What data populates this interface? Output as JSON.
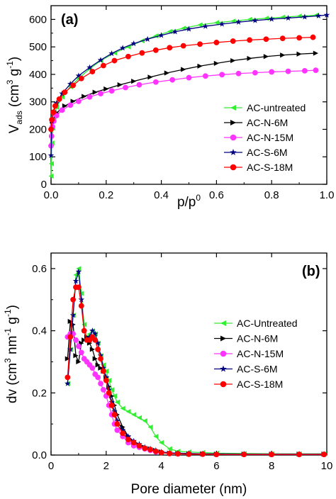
{
  "chart_data": [
    {
      "type": "line",
      "panel_label": "(a)",
      "xlabel": "p/p0",
      "xlabel_main": "p/p",
      "xlabel_sup": "0",
      "ylabel": "Vads (cm3 g-1)",
      "ylabel_parts": {
        "v": "V",
        "sub": "ads",
        "mid": " (cm",
        "sup1": "3",
        "mid2": " g",
        "sup2": "-1",
        "end": ")"
      },
      "xlim": [
        0,
        1.0
      ],
      "ylim": [
        0,
        650
      ],
      "xticks": [
        0.0,
        0.2,
        0.4,
        0.6,
        0.8,
        1.0
      ],
      "xtick_labels": [
        "0.0",
        "0.2",
        "0.4",
        "0.6",
        "0.8",
        "1.0"
      ],
      "yticks": [
        0,
        100,
        200,
        300,
        400,
        500,
        600
      ],
      "ytick_labels": [
        "0",
        "100",
        "200",
        "300",
        "400",
        "500",
        "600"
      ],
      "legend_position": "lower-right",
      "series": [
        {
          "name": "AC-untreated",
          "color": "#33ee33",
          "marker": "triangle-left",
          "x": [
            0.0,
            0.001,
            0.003,
            0.006,
            0.01,
            0.02,
            0.04,
            0.07,
            0.1,
            0.14,
            0.18,
            0.23,
            0.28,
            0.33,
            0.38,
            0.43,
            0.48,
            0.54,
            0.6,
            0.66,
            0.72,
            0.78,
            0.84,
            0.9,
            0.96
          ],
          "y": [
            30,
            75,
            150,
            205,
            240,
            280,
            318,
            355,
            385,
            420,
            450,
            478,
            500,
            522,
            540,
            556,
            568,
            580,
            588,
            594,
            600,
            604,
            608,
            612,
            615
          ]
        },
        {
          "name": "AC-N-6M",
          "color": "#000000",
          "marker": "triangle-right",
          "x": [
            0.005,
            0.02,
            0.05,
            0.08,
            0.12,
            0.16,
            0.2,
            0.25,
            0.3,
            0.36,
            0.42,
            0.48,
            0.54,
            0.6,
            0.66,
            0.72,
            0.78,
            0.84,
            0.9,
            0.96
          ],
          "y": [
            230,
            260,
            285,
            302,
            320,
            335,
            347,
            362,
            375,
            390,
            405,
            418,
            430,
            440,
            450,
            458,
            465,
            470,
            474,
            477
          ]
        },
        {
          "name": "AC-N-15M",
          "color": "#ff33ff",
          "marker": "circle",
          "x": [
            0.0,
            0.002,
            0.005,
            0.01,
            0.02,
            0.04,
            0.07,
            0.1,
            0.14,
            0.18,
            0.22,
            0.27,
            0.32,
            0.38,
            0.44,
            0.5,
            0.56,
            0.62,
            0.68,
            0.74,
            0.8,
            0.86,
            0.92,
            0.96
          ],
          "y": [
            140,
            175,
            210,
            230,
            250,
            270,
            288,
            302,
            318,
            330,
            340,
            352,
            362,
            372,
            380,
            388,
            394,
            399,
            403,
            406,
            409,
            411,
            413,
            415
          ]
        },
        {
          "name": "AC-S-6M",
          "color": "#000080",
          "marker": "star",
          "x": [
            0.0,
            0.003,
            0.01,
            0.02,
            0.04,
            0.07,
            0.1,
            0.14,
            0.18,
            0.22,
            0.26,
            0.3,
            0.35,
            0.4,
            0.45,
            0.5,
            0.56,
            0.62,
            0.68,
            0.74,
            0.8,
            0.86,
            0.92,
            0.97,
            1.0
          ],
          "y": [
            105,
            230,
            265,
            295,
            330,
            365,
            395,
            425,
            452,
            476,
            496,
            512,
            528,
            542,
            555,
            565,
            575,
            583,
            590,
            596,
            601,
            605,
            609,
            613,
            616
          ]
        },
        {
          "name": "AC-S-18M",
          "color": "#ff0000",
          "marker": "circle",
          "x": [
            0.0,
            0.003,
            0.008,
            0.015,
            0.03,
            0.05,
            0.08,
            0.11,
            0.15,
            0.19,
            0.23,
            0.28,
            0.33,
            0.38,
            0.43,
            0.48,
            0.54,
            0.6,
            0.66,
            0.72,
            0.78,
            0.84,
            0.9,
            0.95
          ],
          "y": [
            200,
            235,
            262,
            285,
            310,
            335,
            360,
            385,
            410,
            432,
            450,
            465,
            478,
            488,
            497,
            504,
            510,
            516,
            521,
            525,
            528,
            531,
            533,
            535
          ]
        }
      ]
    },
    {
      "type": "line",
      "panel_label": "(b)",
      "xlabel": "Pore diameter (nm)",
      "ylabel": "dv (cm3 nm-1 g-1)",
      "ylabel_parts": {
        "v": "dv (cm",
        "sup1": "3",
        "mid": " nm",
        "sup2": "-1",
        "mid2": " g",
        "sup3": "-1",
        "end": ")"
      },
      "xlim": [
        0,
        10
      ],
      "ylim": [
        0,
        0.65
      ],
      "xticks": [
        0,
        2,
        4,
        6,
        8,
        10
      ],
      "xtick_labels": [
        "0",
        "2",
        "4",
        "6",
        "8",
        "10"
      ],
      "yticks": [
        0.0,
        0.2,
        0.4,
        0.6
      ],
      "ytick_labels": [
        "0.0",
        "0.2",
        "0.4",
        "0.6"
      ],
      "legend_position": "right",
      "series": [
        {
          "name": "AC-Untreated",
          "color": "#33ee33",
          "marker": "triangle-left",
          "x": [
            0.6,
            0.7,
            0.8,
            0.9,
            1.0,
            1.1,
            1.2,
            1.3,
            1.4,
            1.5,
            1.6,
            1.7,
            1.8,
            1.9,
            2.0,
            2.1,
            2.2,
            2.3,
            2.4,
            2.6,
            2.8,
            3.0,
            3.2,
            3.4,
            3.6,
            3.8,
            4.0,
            4.3,
            4.6,
            5.0,
            5.5,
            6.0,
            7.0,
            8.0,
            9.0,
            9.9
          ],
          "y": [
            0.23,
            0.34,
            0.45,
            0.58,
            0.6,
            0.52,
            0.42,
            0.38,
            0.39,
            0.4,
            0.39,
            0.36,
            0.32,
            0.29,
            0.27,
            0.24,
            0.21,
            0.19,
            0.17,
            0.15,
            0.14,
            0.13,
            0.12,
            0.11,
            0.09,
            0.06,
            0.04,
            0.02,
            0.012,
            0.01,
            0.008,
            0.006,
            0.005,
            0.004,
            0.004,
            0.004
          ]
        },
        {
          "name": "AC-N-6M",
          "color": "#000000",
          "marker": "triangle-right",
          "x": [
            0.6,
            0.7,
            0.8,
            0.9,
            1.0,
            1.1,
            1.2,
            1.3,
            1.4,
            1.5,
            1.6,
            1.7,
            1.8,
            1.9,
            2.0,
            2.1,
            2.2,
            2.3,
            2.4,
            2.6,
            2.8,
            3.0,
            3.2,
            3.4,
            3.6,
            3.8,
            4.0,
            4.3,
            4.6,
            5.0,
            5.5,
            6.0,
            7.0,
            8.0,
            9.0,
            9.9
          ],
          "y": [
            0.31,
            0.43,
            0.42,
            0.32,
            0.3,
            0.36,
            0.37,
            0.38,
            0.36,
            0.34,
            0.31,
            0.29,
            0.28,
            0.27,
            0.25,
            0.22,
            0.19,
            0.16,
            0.13,
            0.09,
            0.06,
            0.04,
            0.03,
            0.025,
            0.02,
            0.015,
            0.01,
            0.006,
            0.005,
            0.004,
            0.004,
            0.003,
            0.003,
            0.003,
            0.003,
            0.003
          ]
        },
        {
          "name": "AC-N-15M",
          "color": "#ff33ff",
          "marker": "circle",
          "x": [
            0.6,
            0.7,
            0.8,
            0.9,
            1.0,
            1.1,
            1.2,
            1.3,
            1.4,
            1.5,
            1.6,
            1.7,
            1.8,
            1.9,
            2.0,
            2.1,
            2.2,
            2.3,
            2.4,
            2.6,
            2.8,
            3.0,
            3.2,
            3.4,
            3.6,
            3.8,
            4.0,
            4.3,
            4.6,
            5.0,
            5.5,
            6.0,
            7.0,
            8.0,
            9.0,
            9.9
          ],
          "y": [
            0.38,
            0.39,
            0.39,
            0.37,
            0.35,
            0.33,
            0.31,
            0.3,
            0.29,
            0.28,
            0.26,
            0.25,
            0.23,
            0.21,
            0.19,
            0.16,
            0.13,
            0.1,
            0.08,
            0.06,
            0.04,
            0.03,
            0.025,
            0.02,
            0.015,
            0.01,
            0.008,
            0.005,
            0.004,
            0.003,
            0.003,
            0.002,
            0.002,
            0.002,
            0.002,
            0.002
          ]
        },
        {
          "name": "AC-S-6M",
          "color": "#000080",
          "marker": "star",
          "x": [
            0.6,
            0.7,
            0.8,
            0.9,
            1.0,
            1.1,
            1.2,
            1.3,
            1.4,
            1.5,
            1.6,
            1.7,
            1.8,
            1.9,
            2.0,
            2.1,
            2.2,
            2.3,
            2.4,
            2.6,
            2.8,
            3.0,
            3.2,
            3.4,
            3.6,
            3.8,
            4.0,
            4.3,
            4.6,
            5.0,
            5.5,
            6.0,
            7.0,
            8.0,
            9.0,
            9.9
          ],
          "y": [
            0.23,
            0.34,
            0.45,
            0.56,
            0.59,
            0.5,
            0.4,
            0.37,
            0.38,
            0.4,
            0.39,
            0.36,
            0.32,
            0.28,
            0.25,
            0.21,
            0.17,
            0.14,
            0.11,
            0.08,
            0.06,
            0.045,
            0.035,
            0.025,
            0.02,
            0.015,
            0.01,
            0.007,
            0.006,
            0.005,
            0.004,
            0.004,
            0.003,
            0.003,
            0.003,
            0.003
          ]
        },
        {
          "name": "AC-S-18M",
          "color": "#ff0000",
          "marker": "circle",
          "x": [
            0.6,
            0.7,
            0.8,
            0.9,
            1.0,
            1.1,
            1.2,
            1.3,
            1.4,
            1.5,
            1.6,
            1.7,
            1.8,
            1.9,
            2.0,
            2.1,
            2.2,
            2.3,
            2.4,
            2.6,
            2.8,
            3.0,
            3.2,
            3.4,
            3.6,
            3.8,
            4.0,
            4.3,
            4.6,
            5.0,
            5.5,
            6.0,
            7.0,
            8.0,
            9.0,
            9.9
          ],
          "y": [
            0.25,
            0.38,
            0.5,
            0.54,
            0.54,
            0.48,
            0.4,
            0.37,
            0.37,
            0.38,
            0.37,
            0.34,
            0.31,
            0.27,
            0.24,
            0.2,
            0.16,
            0.13,
            0.1,
            0.07,
            0.05,
            0.04,
            0.03,
            0.022,
            0.018,
            0.012,
            0.008,
            0.005,
            0.004,
            0.003,
            0.003,
            0.002,
            0.002,
            0.002,
            0.002,
            0.002
          ]
        }
      ]
    }
  ]
}
